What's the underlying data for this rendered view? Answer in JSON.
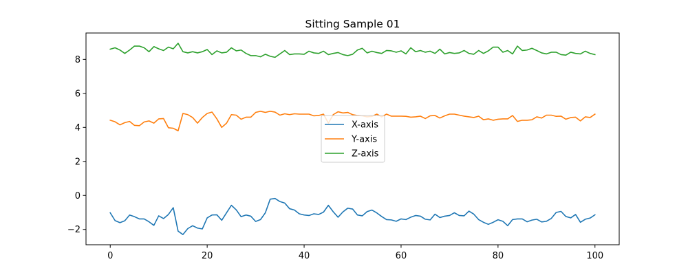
{
  "chart_data": {
    "type": "line",
    "title": "Sitting Sample 01",
    "xlabel": "",
    "ylabel": "",
    "xlim": [
      -5,
      105
    ],
    "ylim": [
      -2.9,
      9.55
    ],
    "xticks": [
      0,
      20,
      40,
      60,
      80,
      100
    ],
    "yticks": [
      -2,
      0,
      2,
      4,
      6,
      8
    ],
    "grid": false,
    "legend_position": "center",
    "x_start": 0,
    "x_step": 1,
    "series": [
      {
        "name": "X-axis",
        "color": "#1f77b4",
        "values": [
          -1.02,
          -1.48,
          -1.6,
          -1.49,
          -1.15,
          -1.25,
          -1.38,
          -1.38,
          -1.55,
          -1.76,
          -1.2,
          -1.36,
          -1.12,
          -0.72,
          -2.1,
          -2.3,
          -1.95,
          -1.78,
          -1.92,
          -1.97,
          -1.32,
          -1.15,
          -1.14,
          -1.46,
          -1.02,
          -0.58,
          -0.85,
          -1.25,
          -1.15,
          -1.22,
          -1.53,
          -1.42,
          -1.02,
          -0.22,
          -0.18,
          -0.36,
          -0.45,
          -0.78,
          -0.86,
          -1.08,
          -1.15,
          -1.18,
          -1.08,
          -1.12,
          -0.98,
          -0.58,
          -0.96,
          -1.28,
          -0.97,
          -0.75,
          -0.8,
          -1.15,
          -1.2,
          -0.95,
          -0.86,
          -1.03,
          -1.24,
          -1.42,
          -1.44,
          -1.52,
          -1.38,
          -1.42,
          -1.28,
          -1.18,
          -1.22,
          -1.4,
          -1.44,
          -1.1,
          -1.3,
          -1.22,
          -1.18,
          -1.02,
          -1.18,
          -1.2,
          -0.92,
          -1.1,
          -1.42,
          -1.58,
          -1.7,
          -1.58,
          -1.43,
          -1.52,
          -1.78,
          -1.42,
          -1.38,
          -1.38,
          -1.55,
          -1.45,
          -1.4,
          -1.56,
          -1.52,
          -1.35,
          -1.0,
          -0.94,
          -1.24,
          -1.32,
          -1.12,
          -1.58,
          -1.4,
          -1.33,
          -1.14
        ]
      },
      {
        "name": "Y-axis",
        "color": "#ff7f0e",
        "values": [
          4.42,
          4.33,
          4.15,
          4.28,
          4.35,
          4.12,
          4.1,
          4.32,
          4.38,
          4.25,
          4.5,
          4.52,
          3.98,
          3.95,
          3.8,
          4.82,
          4.75,
          4.58,
          4.25,
          4.58,
          4.82,
          4.9,
          4.5,
          4.0,
          4.25,
          4.75,
          4.72,
          4.48,
          4.6,
          4.6,
          4.88,
          4.95,
          4.88,
          4.95,
          4.9,
          4.72,
          4.8,
          4.75,
          4.8,
          4.78,
          4.78,
          4.78,
          4.68,
          4.7,
          4.78,
          4.25,
          4.75,
          4.92,
          4.85,
          4.88,
          4.75,
          4.7,
          4.68,
          4.62,
          4.65,
          4.78,
          4.62,
          4.78,
          4.66,
          4.66,
          4.66,
          4.65,
          4.6,
          4.62,
          4.66,
          4.52,
          4.68,
          4.7,
          4.55,
          4.68,
          4.78,
          4.78,
          4.72,
          4.66,
          4.62,
          4.58,
          4.66,
          4.45,
          4.5,
          4.42,
          4.48,
          4.5,
          4.5,
          4.7,
          4.35,
          4.42,
          4.42,
          4.45,
          4.62,
          4.55,
          4.72,
          4.72,
          4.65,
          4.66,
          4.48,
          4.58,
          4.6,
          4.38,
          4.62,
          4.58,
          4.78
        ]
      },
      {
        "name": "Z-axis",
        "color": "#2ca02c",
        "values": [
          8.6,
          8.68,
          8.55,
          8.35,
          8.55,
          8.78,
          8.78,
          8.68,
          8.45,
          8.75,
          8.62,
          8.52,
          8.72,
          8.62,
          8.95,
          8.45,
          8.38,
          8.45,
          8.38,
          8.45,
          8.58,
          8.28,
          8.5,
          8.38,
          8.42,
          8.68,
          8.5,
          8.55,
          8.35,
          8.22,
          8.22,
          8.15,
          8.3,
          8.18,
          8.12,
          8.32,
          8.52,
          8.28,
          8.32,
          8.32,
          8.3,
          8.48,
          8.38,
          8.35,
          8.48,
          8.28,
          8.35,
          8.4,
          8.28,
          8.22,
          8.3,
          8.55,
          8.65,
          8.38,
          8.48,
          8.4,
          8.35,
          8.52,
          8.5,
          8.42,
          8.5,
          8.32,
          8.68,
          8.45,
          8.52,
          8.42,
          8.48,
          8.35,
          8.6,
          8.32,
          8.4,
          8.35,
          8.38,
          8.52,
          8.35,
          8.3,
          8.52,
          8.35,
          8.5,
          8.72,
          8.72,
          8.42,
          8.52,
          8.32,
          8.78,
          8.52,
          8.55,
          8.65,
          8.52,
          8.38,
          8.32,
          8.42,
          8.42,
          8.28,
          8.25,
          8.42,
          8.35,
          8.32,
          8.48,
          8.35,
          8.28
        ]
      }
    ]
  }
}
